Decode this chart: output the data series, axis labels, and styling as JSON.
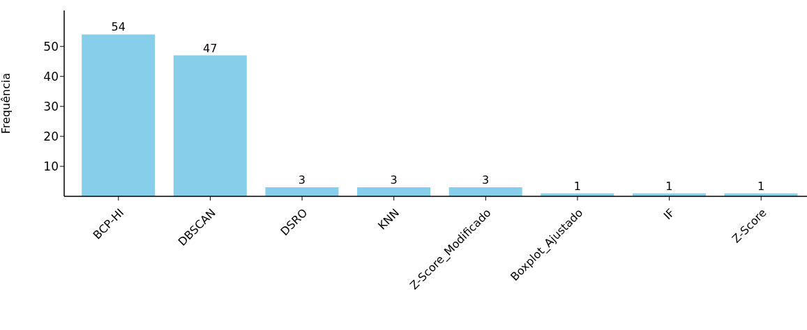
{
  "chart_data": {
    "type": "bar",
    "ylabel": "Frequência",
    "categories": [
      "BCP-HI",
      "DBSCAN",
      "DSRO",
      "KNN",
      "Z-Score_Modificado",
      "Boxplot_Ajustado",
      "IF",
      "Z-Score"
    ],
    "values": [
      54,
      47,
      3,
      3,
      3,
      1,
      1,
      1
    ],
    "color": "#87ceeb",
    "ylim": [
      0,
      62
    ],
    "yticks": [
      10,
      20,
      30,
      40,
      50
    ],
    "grid": false,
    "data_labels": true
  }
}
